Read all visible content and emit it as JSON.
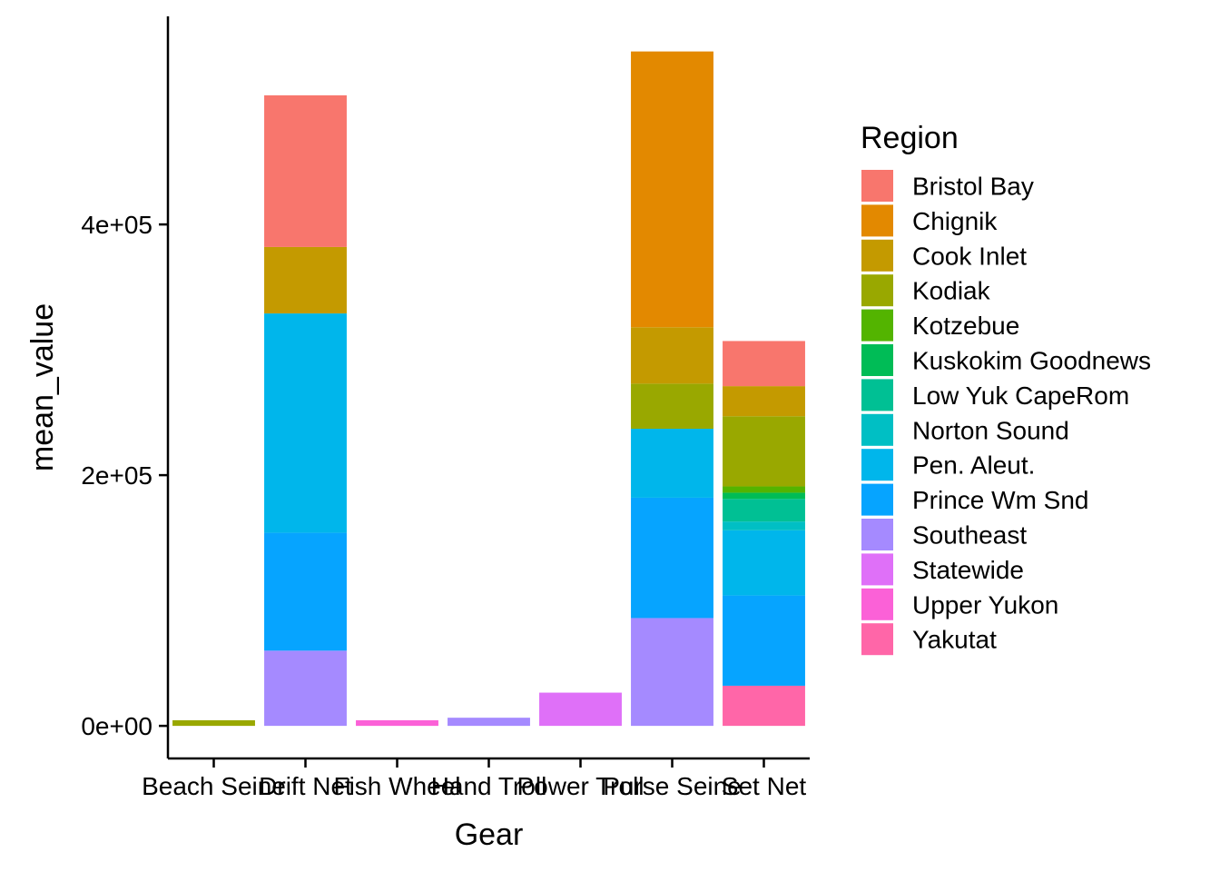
{
  "chart_data": {
    "type": "bar",
    "stacked": true,
    "title": "",
    "xlabel": "Gear",
    "ylabel": "mean_value",
    "ylim": [
      -26000,
      566000
    ],
    "yticks": [
      {
        "value": 0,
        "label": "0e+00"
      },
      {
        "value": 200000,
        "label": "2e+05"
      },
      {
        "value": 400000,
        "label": "4e+05"
      }
    ],
    "categories": [
      "Beach Seine",
      "Drift Net",
      "Fish Wheel",
      "Hand Troll",
      "Power Troll",
      "Purse Seine",
      "Set Net"
    ],
    "legend": {
      "title": "Region",
      "position": "right"
    },
    "grid": false,
    "series": [
      {
        "name": "Bristol Bay",
        "color": "#F8766D",
        "values": [
          0,
          121000,
          0,
          0,
          0,
          0,
          36000
        ]
      },
      {
        "name": "Chignik",
        "color": "#E38900",
        "values": [
          0,
          0,
          0,
          0,
          0,
          220000,
          0
        ]
      },
      {
        "name": "Cook Inlet",
        "color": "#C49A00",
        "values": [
          0,
          53000,
          0,
          0,
          0,
          45000,
          24000
        ]
      },
      {
        "name": "Kodiak",
        "color": "#99A800",
        "values": [
          4500,
          0,
          0,
          0,
          0,
          36000,
          56000
        ]
      },
      {
        "name": "Kotzebue",
        "color": "#53B400",
        "values": [
          0,
          0,
          0,
          0,
          0,
          0,
          5000
        ]
      },
      {
        "name": "Kuskokim Goodnews",
        "color": "#00BC56",
        "values": [
          0,
          0,
          0,
          0,
          0,
          0,
          5000
        ]
      },
      {
        "name": "Low Yuk CapeRom",
        "color": "#00C094",
        "values": [
          0,
          0,
          0,
          0,
          0,
          0,
          18000
        ]
      },
      {
        "name": "Norton Sound",
        "color": "#00BFC4",
        "values": [
          0,
          0,
          0,
          0,
          0,
          0,
          7000
        ]
      },
      {
        "name": "Pen. Aleut.",
        "color": "#00B6EB",
        "values": [
          0,
          175000,
          0,
          0,
          0,
          55000,
          52000
        ]
      },
      {
        "name": "Prince Wm Snd",
        "color": "#06A4FF",
        "values": [
          0,
          94000,
          0,
          0,
          0,
          96000,
          72000
        ]
      },
      {
        "name": "Southeast",
        "color": "#A58AFF",
        "values": [
          0,
          60000,
          0,
          6500,
          0,
          86000,
          0
        ]
      },
      {
        "name": "Statewide",
        "color": "#DF70F8",
        "values": [
          0,
          0,
          0,
          0,
          26500,
          0,
          0
        ]
      },
      {
        "name": "Upper Yukon",
        "color": "#FB61D7",
        "values": [
          0,
          0,
          4500,
          0,
          0,
          0,
          0
        ]
      },
      {
        "name": "Yakutat",
        "color": "#FF66A8",
        "values": [
          0,
          0,
          0,
          0,
          0,
          0,
          32000
        ]
      }
    ]
  }
}
